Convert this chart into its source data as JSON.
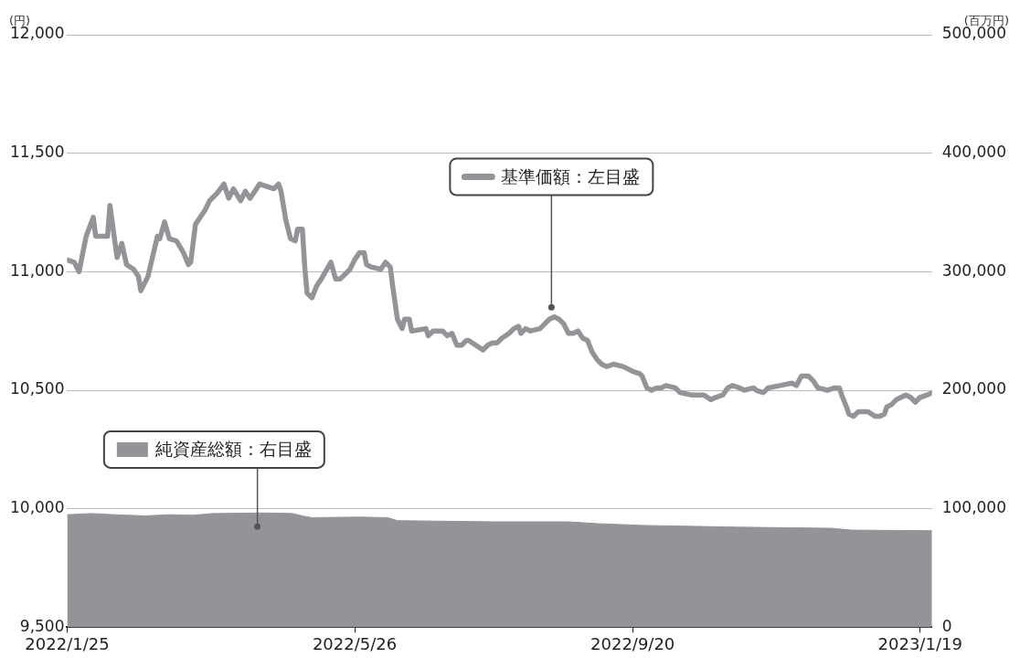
{
  "chart_data": {
    "type": "line",
    "ylabel": "(円)",
    "y2label": "(百万円)",
    "xlim": [
      "2022-01-25",
      "2023-01-24"
    ],
    "xticks": [
      {
        "value": "2022-01-25",
        "label": "2022/1/25"
      },
      {
        "value": "2022-05-26",
        "label": "2022/5/26"
      },
      {
        "value": "2022-09-20",
        "label": "2022/9/20"
      },
      {
        "value": "2023-01-19",
        "label": "2023/1/19"
      }
    ],
    "ylim": [
      9500,
      12000
    ],
    "yticks": [
      {
        "value": 9500,
        "label": "9,500"
      },
      {
        "value": 10000,
        "label": "10,000"
      },
      {
        "value": 10500,
        "label": "10,500"
      },
      {
        "value": 11000,
        "label": "11,000"
      },
      {
        "value": 11500,
        "label": "11,500"
      },
      {
        "value": 12000,
        "label": "12,000"
      }
    ],
    "y2lim": [
      0,
      500000
    ],
    "y2ticks": [
      0,
      {
        "value": 100000,
        "label": "100,000"
      },
      {
        "value": 200000,
        "label": "200,000"
      },
      {
        "value": 300000,
        "label": "300,000"
      },
      {
        "value": 400000,
        "label": "400,000"
      },
      {
        "value": 500000,
        "label": "500,000"
      }
    ],
    "legend": "top",
    "grid": "y",
    "series": [
      {
        "name": "純資産総額：右目盛",
        "type": "area",
        "axis": "y2",
        "color": "#939498",
        "x": [
          "2022-01-25",
          "2022-02-04",
          "2022-02-14",
          "2022-02-27",
          "2022-03-09",
          "2022-03-19",
          "2022-03-27",
          "2022-04-18",
          "2022-04-30",
          "2022-05-04",
          "2022-05-08",
          "2022-05-28",
          "2022-06-09",
          "2022-06-13",
          "2022-07-23",
          "2022-08-24",
          "2022-09-05",
          "2022-09-24",
          "2022-11-03",
          "2022-12-13",
          "2022-12-21",
          "2023-01-24"
        ],
        "values": [
          95000,
          96000,
          95000,
          94000,
          95000,
          94500,
          96000,
          96500,
          96000,
          94000,
          92500,
          93000,
          92500,
          90000,
          89000,
          89000,
          87500,
          86000,
          84500,
          83500,
          82000,
          81500
        ]
      },
      {
        "name": "基準価額：左目盛",
        "color": "#939498",
        "x": [
          "2022-01-25",
          "2022-01-28",
          "2022-01-30",
          "2022-02-02",
          "2022-02-05",
          "2022-02-06",
          "2022-02-11",
          "2022-02-12",
          "2022-02-15",
          "2022-02-17",
          "2022-02-19",
          "2022-02-22",
          "2022-02-24",
          "2022-02-25",
          "2022-02-28",
          "2022-03-04",
          "2022-03-05",
          "2022-03-07",
          "2022-03-09",
          "2022-03-12",
          "2022-03-15",
          "2022-03-17",
          "2022-03-18",
          "2022-03-20",
          "2022-03-24",
          "2022-03-26",
          "2022-03-29",
          "2022-04-01",
          "2022-04-03",
          "2022-04-05",
          "2022-04-08",
          "2022-04-10",
          "2022-04-12",
          "2022-04-16",
          "2022-04-22",
          "2022-04-24",
          "2022-04-25",
          "2022-04-27",
          "2022-04-29",
          "2022-05-01",
          "2022-05-02",
          "2022-05-04",
          "2022-05-05",
          "2022-05-06",
          "2022-05-08",
          "2022-05-10",
          "2022-05-12",
          "2022-05-16",
          "2022-05-18",
          "2022-05-20",
          "2022-05-24",
          "2022-05-26",
          "2022-05-28",
          "2022-05-30",
          "2022-05-31",
          "2022-06-02",
          "2022-06-06",
          "2022-06-08",
          "2022-06-10",
          "2022-06-11",
          "2022-06-13",
          "2022-06-15",
          "2022-06-16",
          "2022-06-18",
          "2022-06-19",
          "2022-06-25",
          "2022-06-26",
          "2022-06-28",
          "2022-07-02",
          "2022-07-04",
          "2022-07-06",
          "2022-07-08",
          "2022-07-10",
          "2022-07-12",
          "2022-07-13",
          "2022-07-16",
          "2022-07-19",
          "2022-07-21",
          "2022-07-23",
          "2022-07-25",
          "2022-07-27",
          "2022-07-30",
          "2022-08-01",
          "2022-08-03",
          "2022-08-04",
          "2022-08-06",
          "2022-08-08",
          "2022-08-12",
          "2022-08-14",
          "2022-08-16",
          "2022-08-18",
          "2022-08-20",
          "2022-08-22",
          "2022-08-24",
          "2022-08-26",
          "2022-08-28",
          "2022-08-30",
          "2022-09-01",
          "2022-09-03",
          "2022-09-05",
          "2022-09-07",
          "2022-09-09",
          "2022-09-12",
          "2022-09-16",
          "2022-09-20",
          "2022-09-23",
          "2022-09-24",
          "2022-09-26",
          "2022-09-28",
          "2022-09-30",
          "2022-10-02",
          "2022-10-04",
          "2022-10-08",
          "2022-10-10",
          "2022-10-15",
          "2022-10-20",
          "2022-10-23",
          "2022-10-25",
          "2022-10-28",
          "2022-10-30",
          "2022-11-01",
          "2022-11-04",
          "2022-11-06",
          "2022-11-10",
          "2022-11-11",
          "2022-11-14",
          "2022-11-16",
          "2022-11-21",
          "2022-11-26",
          "2022-11-28",
          "2022-11-30",
          "2022-12-03",
          "2022-12-05",
          "2022-12-07",
          "2022-12-11",
          "2022-12-14",
          "2022-12-16",
          "2022-12-17",
          "2022-12-19",
          "2022-12-20",
          "2022-12-22",
          "2022-12-24",
          "2022-12-28",
          "2022-12-31",
          "2023-01-02",
          "2023-01-04",
          "2023-01-05",
          "2023-01-07",
          "2023-01-09",
          "2023-01-11",
          "2023-01-13",
          "2023-01-15",
          "2023-01-17",
          "2023-01-19",
          "2023-01-22",
          "2023-01-24"
        ],
        "values": [
          11050,
          11040,
          11000,
          11150,
          11230,
          11150,
          11150,
          11280,
          11060,
          11120,
          11030,
          11010,
          10980,
          10920,
          10980,
          11150,
          11140,
          11210,
          11140,
          11130,
          11080,
          11030,
          11040,
          11200,
          11260,
          11300,
          11330,
          11370,
          11310,
          11350,
          11300,
          11340,
          11310,
          11370,
          11350,
          11370,
          11340,
          11220,
          11140,
          11130,
          11180,
          11180,
          11020,
          10910,
          10890,
          10940,
          10970,
          11040,
          10970,
          10970,
          11010,
          11050,
          11080,
          11080,
          11030,
          11020,
          11010,
          11040,
          11020,
          10940,
          10800,
          10760,
          10800,
          10800,
          10750,
          10760,
          10730,
          10750,
          10750,
          10730,
          10740,
          10690,
          10690,
          10710,
          10710,
          10690,
          10670,
          10690,
          10700,
          10700,
          10720,
          10740,
          10760,
          10770,
          10740,
          10760,
          10750,
          10760,
          10780,
          10800,
          10810,
          10800,
          10780,
          10740,
          10740,
          10750,
          10720,
          10710,
          10660,
          10630,
          10610,
          10600,
          10610,
          10600,
          10580,
          10570,
          10560,
          10510,
          10500,
          10510,
          10510,
          10520,
          10510,
          10490,
          10480,
          10480,
          10460,
          10470,
          10480,
          10510,
          10520,
          10510,
          10500,
          10510,
          10500,
          10490,
          10510,
          10520,
          10530,
          10520,
          10560,
          10560,
          10540,
          10510,
          10500,
          10510,
          10510,
          10480,
          10430,
          10400,
          10390,
          10410,
          10410,
          10390,
          10390,
          10400,
          10430,
          10440,
          10460,
          10470,
          10480,
          10470,
          10450,
          10470,
          10480,
          10490
        ]
      }
    ]
  }
}
